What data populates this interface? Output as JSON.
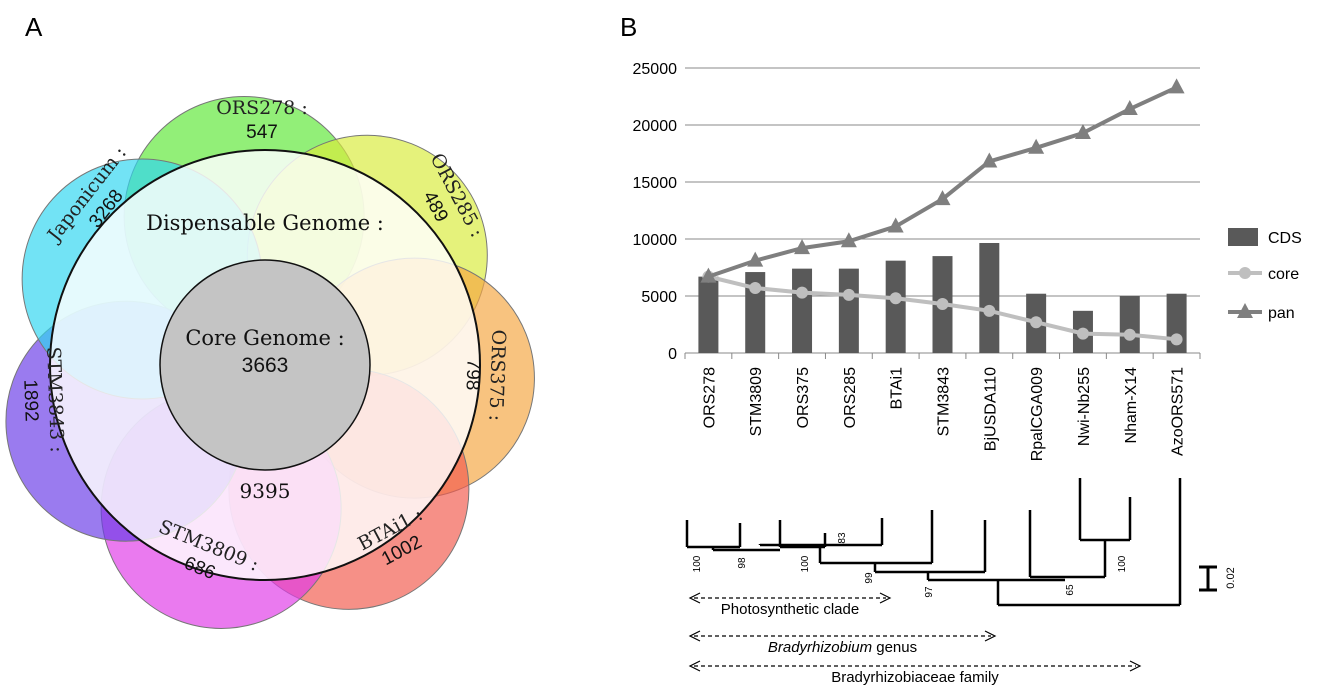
{
  "panels": {
    "a": "A",
    "b": "B"
  },
  "venn": {
    "petals": [
      {
        "name": "ORS278 :",
        "value": "547",
        "color": "#5fe838"
      },
      {
        "name": "ORS285 :",
        "value": "489",
        "color": "#d9ec3c"
      },
      {
        "name": "ORS375 :",
        "value": "798",
        "color": "#f5a742"
      },
      {
        "name": "BTAi1 :",
        "value": "1002",
        "color": "#f25c4e"
      },
      {
        "name": "STM3809 :",
        "value": "686",
        "color": "#e03be8"
      },
      {
        "name": "STM3843 :",
        "value": "1892",
        "color": "#6a3ce8"
      },
      {
        "name": "Japonicum :",
        "value": "3268",
        "color": "#2fd6f0"
      }
    ],
    "dispensable_label": "Dispensable Genome :",
    "dispensable_value": "9395",
    "core_label": "Core Genome :",
    "core_value": "3663",
    "core_color": "#c4c4c4"
  },
  "chart_data": {
    "type": "bar",
    "categories": [
      "ORS278",
      "STM3809",
      "ORS375",
      "ORS285",
      "BTAi1",
      "STM3843",
      "BjUSDA110",
      "RpalCGA009",
      "Nwi-Nb255",
      "Nham-X14",
      "AzoORS571"
    ],
    "series": [
      {
        "name": "CDS",
        "type": "bar",
        "color": "#595959",
        "values": [
          6700,
          7100,
          7400,
          7400,
          8100,
          8500,
          9650,
          5200,
          3700,
          5000,
          5200
        ]
      },
      {
        "name": "core",
        "type": "line",
        "marker": "circle",
        "color": "#bfbfbf",
        "values": [
          6700,
          5700,
          5300,
          5100,
          4800,
          4300,
          3700,
          2700,
          1700,
          1600,
          1200
        ]
      },
      {
        "name": "pan",
        "type": "line",
        "marker": "triangle",
        "color": "#7f7f7f",
        "values": [
          6700,
          8100,
          9200,
          9800,
          11100,
          13500,
          16800,
          18000,
          19300,
          21400,
          23300
        ]
      }
    ],
    "yticks": [
      "0",
      "5000",
      "10000",
      "15000",
      "20000",
      "25000"
    ],
    "ylim": [
      0,
      25000
    ],
    "grid": true,
    "legend": "right"
  },
  "tree": {
    "bootstrap": [
      "100",
      "98",
      "100",
      "83",
      "99",
      "97",
      "65",
      "100"
    ],
    "scale": "0.02",
    "clades": [
      {
        "label": "Photosynthetic clade",
        "italic_part": ""
      },
      {
        "label": " genus",
        "italic_part": "Bradyrhizobium"
      },
      {
        "label": "Bradyrhizobiaceae family",
        "italic_part": ""
      }
    ]
  }
}
